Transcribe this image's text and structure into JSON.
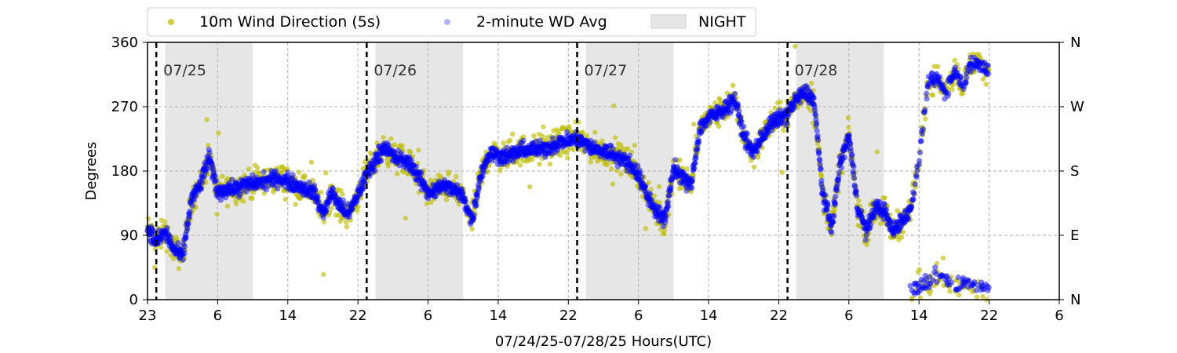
{
  "chart_data": {
    "type": "scatter",
    "xlabel": "07/24/25-07/28/25  Hours(UTC)",
    "ylabel": "Degrees",
    "ylim": [
      0,
      360
    ],
    "x_ticks": [
      "23",
      "6",
      "14",
      "22",
      "6",
      "14",
      "22",
      "6",
      "14",
      "22",
      "6",
      "14",
      "22",
      "6"
    ],
    "y_ticks": [
      "0",
      "90",
      "180",
      "270",
      "360"
    ],
    "y2_ticks": [
      "N",
      "E",
      "S",
      "W",
      "N"
    ],
    "grid": true,
    "legend_position": "top",
    "day_markers": [
      "07/25",
      "07/26",
      "07/27",
      "07/28"
    ],
    "night_bands": [
      {
        "start": "07/25 01:00",
        "end": "07/25 11:00"
      },
      {
        "start": "07/26 01:00",
        "end": "07/26 11:00"
      },
      {
        "start": "07/27 01:00",
        "end": "07/27 11:00"
      },
      {
        "start": "07/28 01:00",
        "end": "07/28 11:00"
      }
    ],
    "series": [
      {
        "name": "10m Wind Direction (5s)",
        "color": "#bfbf00",
        "marker": "dot"
      },
      {
        "name": "2-minute WD Avg",
        "color": "#0000ff",
        "marker": "dot"
      },
      {
        "name": "NIGHT",
        "color": "#e6e6e6",
        "marker": "band"
      }
    ],
    "avg_trace": [
      [
        "07/24 23:00",
        100
      ],
      [
        "07/25 00:00",
        80
      ],
      [
        "07/25 01:00",
        95
      ],
      [
        "07/25 02:00",
        70
      ],
      [
        "07/25 03:00",
        60
      ],
      [
        "07/25 04:00",
        140
      ],
      [
        "07/25 05:00",
        160
      ],
      [
        "07/25 06:00",
        200
      ],
      [
        "07/25 07:00",
        150
      ],
      [
        "07/25 08:00",
        155
      ],
      [
        "07/25 09:00",
        155
      ],
      [
        "07/25 10:00",
        160
      ],
      [
        "07/25 12:00",
        165
      ],
      [
        "07/25 14:00",
        170
      ],
      [
        "07/25 16:00",
        160
      ],
      [
        "07/25 18:00",
        150
      ],
      [
        "07/25 19:00",
        120
      ],
      [
        "07/25 20:00",
        150
      ],
      [
        "07/25 21:00",
        130
      ],
      [
        "07/25 22:00",
        120
      ],
      [
        "07/26 00:00",
        175
      ],
      [
        "07/26 02:00",
        215
      ],
      [
        "07/26 03:00",
        200
      ],
      [
        "07/26 05:00",
        190
      ],
      [
        "07/26 07:00",
        150
      ],
      [
        "07/26 09:00",
        160
      ],
      [
        "07/26 11:00",
        145
      ],
      [
        "07/26 12:00",
        110
      ],
      [
        "07/26 13:00",
        175
      ],
      [
        "07/26 14:00",
        205
      ],
      [
        "07/26 16:00",
        200
      ],
      [
        "07/26 18:00",
        210
      ],
      [
        "07/26 20:00",
        210
      ],
      [
        "07/26 22:00",
        220
      ],
      [
        "07/27 00:00",
        225
      ],
      [
        "07/27 02:00",
        210
      ],
      [
        "07/27 04:00",
        205
      ],
      [
        "07/27 06:00",
        190
      ],
      [
        "07/27 07:00",
        175
      ],
      [
        "07/27 08:00",
        145
      ],
      [
        "07/27 09:00",
        125
      ],
      [
        "07/27 10:00",
        110
      ],
      [
        "07/27 11:00",
        185
      ],
      [
        "07/27 12:00",
        170
      ],
      [
        "07/27 13:00",
        160
      ],
      [
        "07/27 14:00",
        240
      ],
      [
        "07/27 15:00",
        255
      ],
      [
        "07/27 16:00",
        260
      ],
      [
        "07/27 17:00",
        270
      ],
      [
        "07/27 18:00",
        280
      ],
      [
        "07/27 19:00",
        230
      ],
      [
        "07/27 20:00",
        205
      ],
      [
        "07/27 21:00",
        225
      ],
      [
        "07/27 22:00",
        245
      ],
      [
        "07/28 00:00",
        260
      ],
      [
        "07/28 01:00",
        280
      ],
      [
        "07/28 02:00",
        290
      ],
      [
        "07/28 03:00",
        280
      ],
      [
        "07/28 04:00",
        150
      ],
      [
        "07/28 05:00",
        100
      ],
      [
        "07/28 06:00",
        190
      ],
      [
        "07/28 07:00",
        230
      ],
      [
        "07/28 08:00",
        130
      ],
      [
        "07/28 09:00",
        95
      ],
      [
        "07/28 10:00",
        130
      ],
      [
        "07/28 11:00",
        125
      ],
      [
        "07/28 12:00",
        95
      ],
      [
        "07/28 13:00",
        110
      ],
      [
        "07/28 14:00",
        125
      ],
      [
        "07/28 15:00",
        195
      ],
      [
        "07/28 16:00",
        300
      ],
      [
        "07/28 17:00",
        310
      ],
      [
        "07/28 18:00",
        290
      ],
      [
        "07/28 19:00",
        320
      ],
      [
        "07/28 20:00",
        300
      ],
      [
        "07/28 21:00",
        330
      ],
      [
        "07/28 22:00",
        330
      ],
      [
        "07/28 23:00",
        320
      ]
    ],
    "low_cluster": [
      [
        "07/28 14:00",
        12
      ],
      [
        "07/28 15:00",
        18
      ],
      [
        "07/28 16:00",
        25
      ],
      [
        "07/28 17:00",
        35
      ],
      [
        "07/28 18:00",
        30
      ],
      [
        "07/28 19:00",
        20
      ],
      [
        "07/28 20:00",
        28
      ],
      [
        "07/28 21:00",
        22
      ],
      [
        "07/28 22:00",
        18
      ],
      [
        "07/28 23:00",
        15
      ]
    ]
  }
}
